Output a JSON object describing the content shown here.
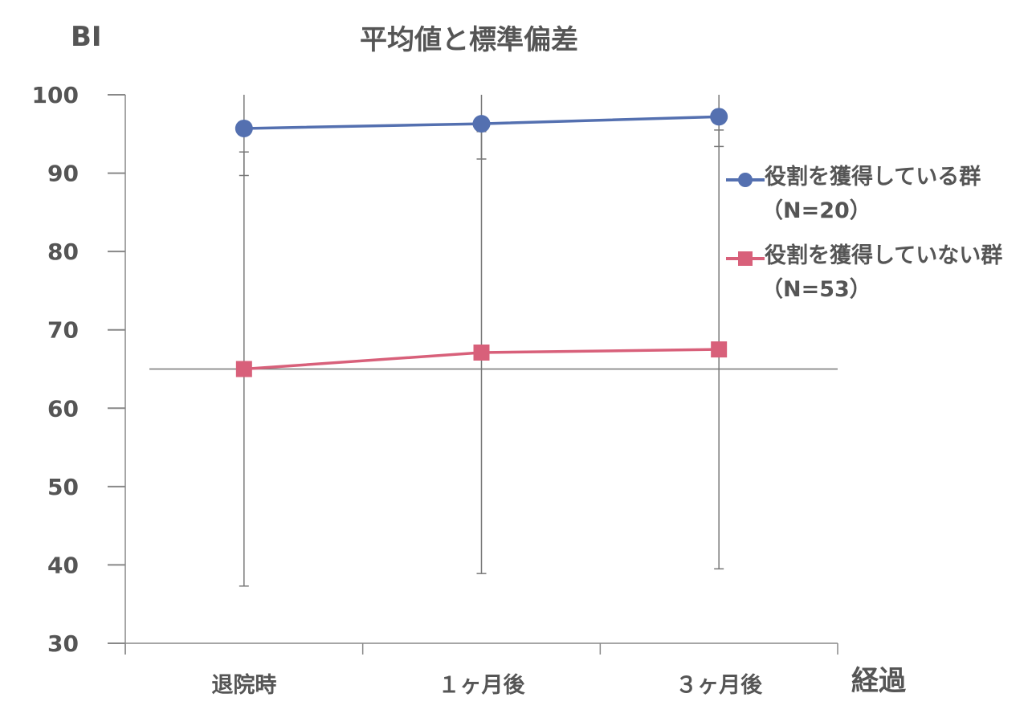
{
  "chart_data": {
    "type": "line",
    "title": "平均値と標準偏差",
    "ylabel": "BI",
    "xlabel": "経過",
    "categories": [
      "退院時",
      "１ヶ月後",
      "３ヶ月後"
    ],
    "ylim": [
      30,
      100
    ],
    "yticks": [
      30,
      40,
      50,
      60,
      70,
      80,
      90,
      100
    ],
    "grid": false,
    "legend_position": "right",
    "series": [
      {
        "name": "役割を獲得している群",
        "n_label": "（N=20）",
        "color": "#5470b0",
        "marker": "circle",
        "values": [
          95.7,
          96.3,
          97.2
        ],
        "error_lower": [
          89.7,
          91.8,
          93.4
        ],
        "error_upper": [
          101.7,
          100.8,
          101.0
        ]
      },
      {
        "name": "役割を獲得していない群",
        "n_label": "（N=53）",
        "color": "#d8607a",
        "marker": "square",
        "values": [
          65.0,
          67.1,
          67.5
        ],
        "error_lower": [
          37.3,
          38.9,
          39.5
        ],
        "error_upper": [
          92.7,
          95.3,
          95.5
        ]
      }
    ],
    "reference_line": 65
  }
}
